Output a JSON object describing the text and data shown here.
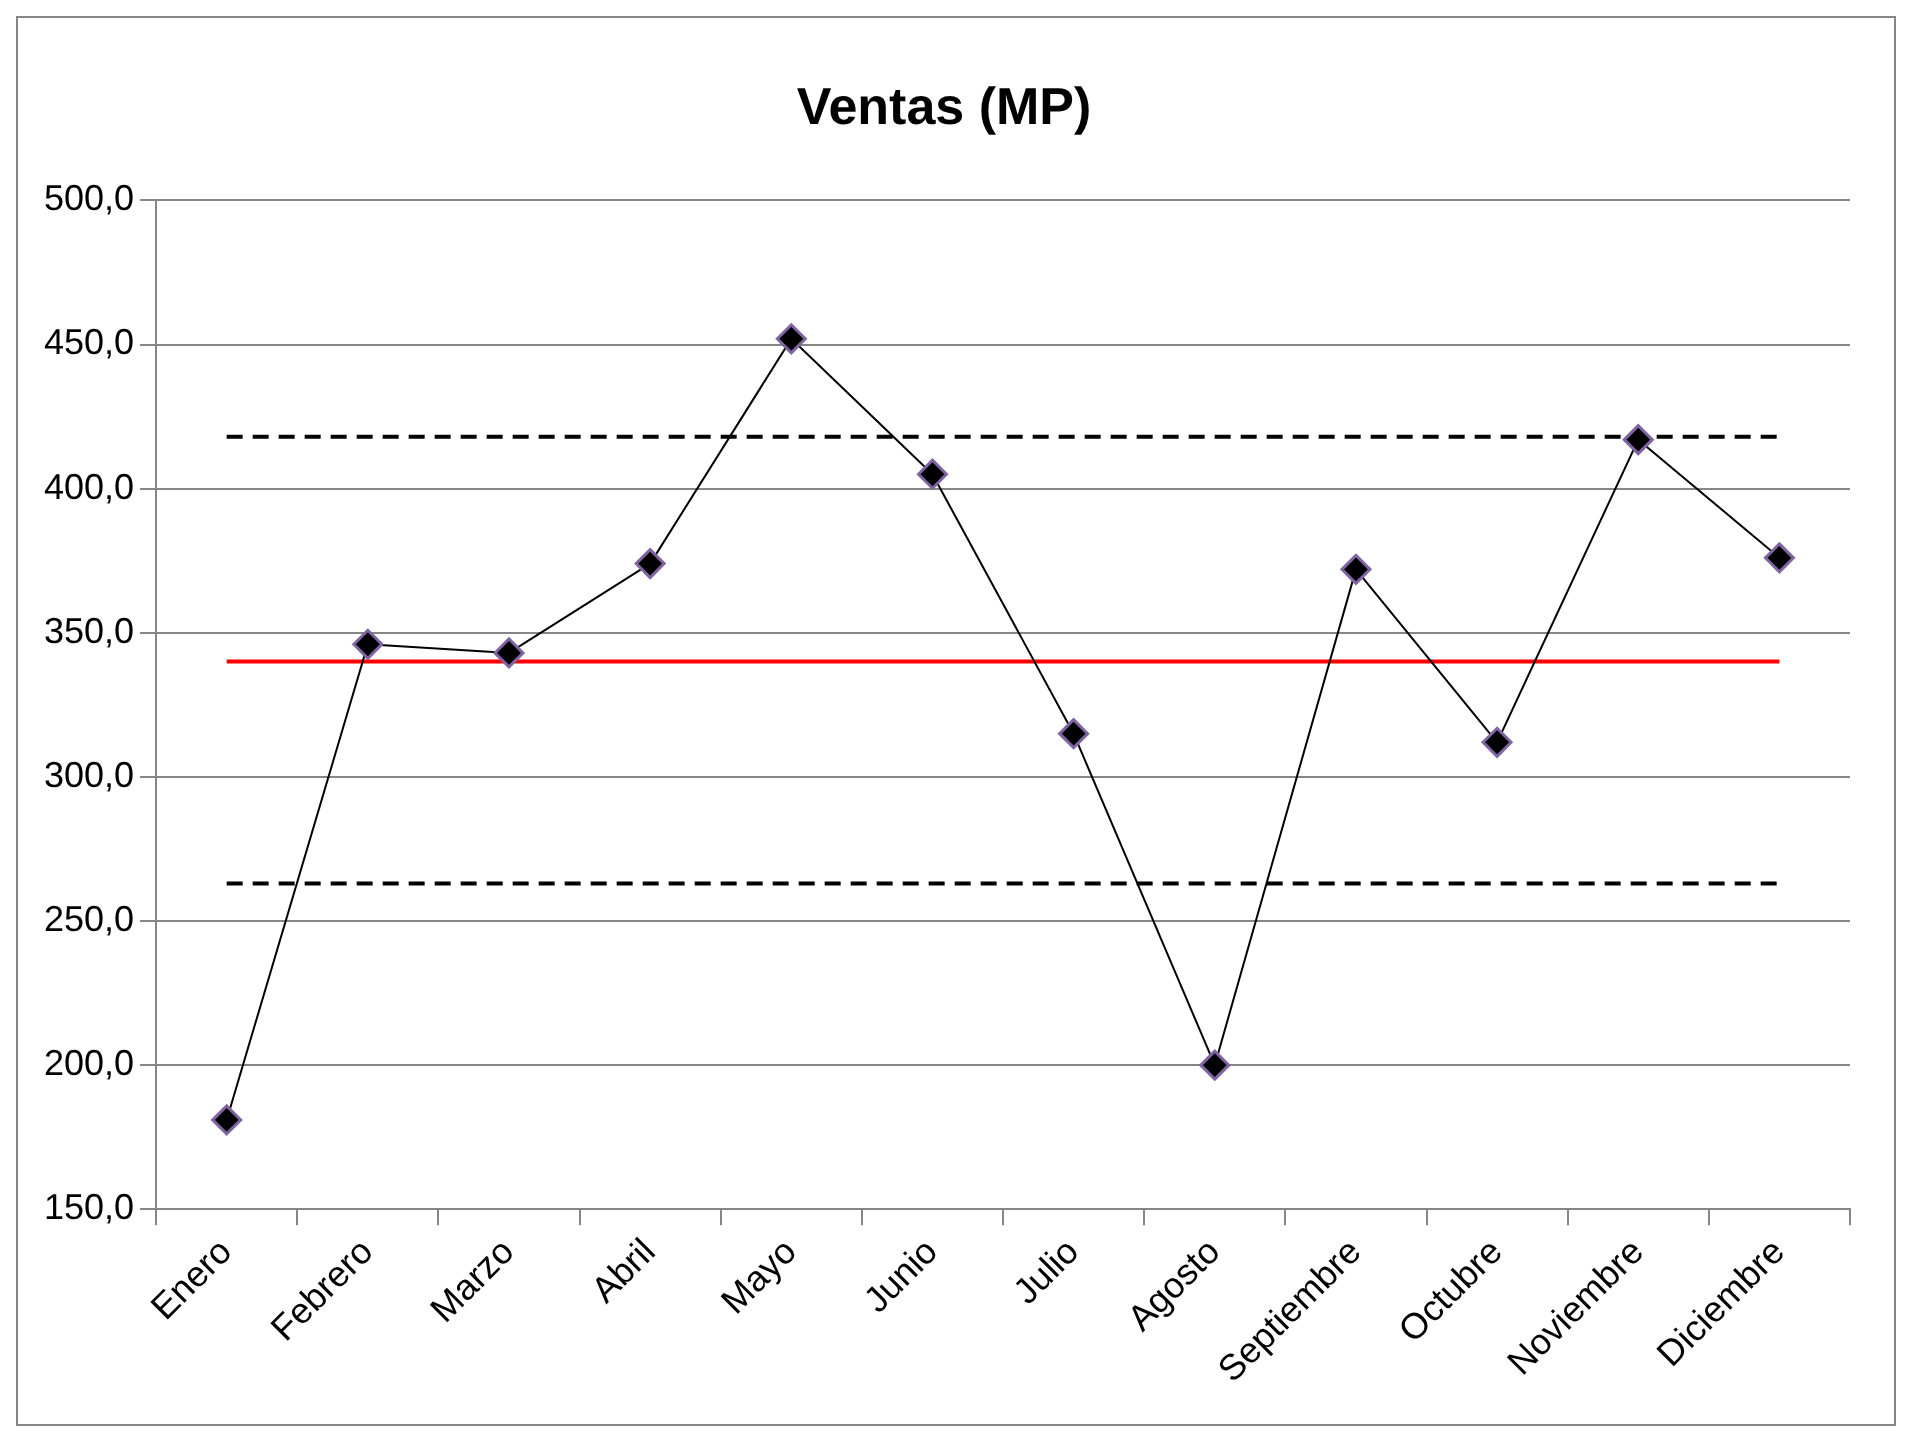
{
  "chart_data": {
    "type": "line",
    "title": "Ventas (MP)",
    "categories": [
      "Enero",
      "Febrero",
      "Marzo",
      "Abril",
      "Mayo",
      "Junio",
      "Julio",
      "Agosto",
      "Septiembre",
      "Octubre",
      "Noviembre",
      "Diciembre"
    ],
    "series": [
      {
        "color": "#000000",
        "values": [
          181,
          346,
          343,
          374,
          452,
          405,
          315,
          200,
          372,
          312,
          417,
          376
        ]
      }
    ],
    "ylim": [
      150,
      500
    ],
    "yticks": [
      {
        "value": 150,
        "label": "150,0"
      },
      {
        "value": 200,
        "label": "200,0"
      },
      {
        "value": 250,
        "label": "250,0"
      },
      {
        "value": 300,
        "label": "300,0"
      },
      {
        "value": 350,
        "label": "350,0"
      },
      {
        "value": 400,
        "label": "400,0"
      },
      {
        "value": 450,
        "label": "450,0"
      },
      {
        "value": 500,
        "label": "500,0"
      }
    ],
    "ref_lines": [
      {
        "axis": "y",
        "value": 340,
        "color": "#ff0000",
        "line_style": "solid"
      },
      {
        "axis": "y",
        "value": 418,
        "color": "#000000",
        "line_style": "dashed"
      },
      {
        "axis": "y",
        "value": 263,
        "color": "#000000",
        "line_style": "dashed"
      }
    ],
    "grid": "y",
    "legend": false,
    "marker": "diamond",
    "line_style": "solid"
  }
}
